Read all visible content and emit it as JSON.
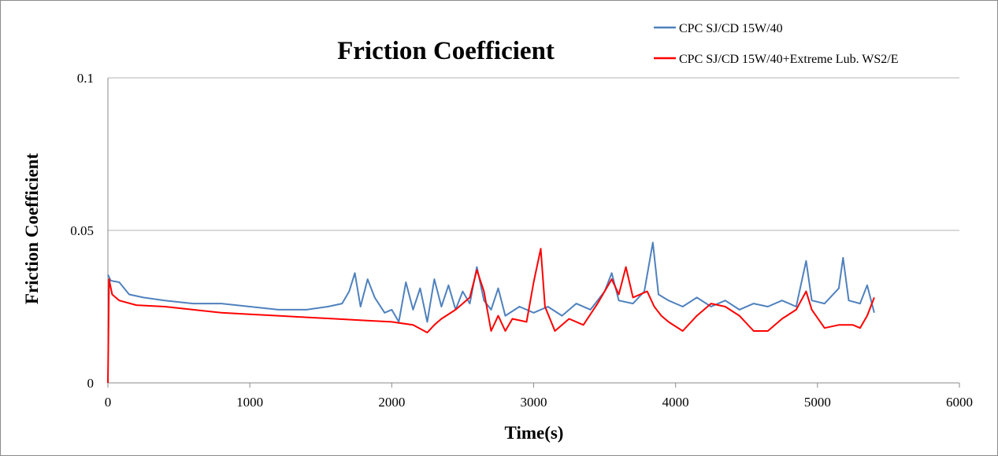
{
  "chart_data": {
    "type": "line",
    "title": "Friction Coefficient",
    "xlabel": "Time(s)",
    "ylabel": "Friction Coefficient",
    "xlim": [
      0,
      6000
    ],
    "ylim": [
      0,
      0.1
    ],
    "x_ticks": [
      "0",
      "1000",
      "2000",
      "3000",
      "4000",
      "5000",
      "6000"
    ],
    "y_ticks": [
      "0",
      "0.05",
      "0.1"
    ],
    "grid": "horizontal",
    "legend_position": "top-right",
    "series": [
      {
        "name": "CPC SJ/CD 15W/40",
        "color": "#4f81bd",
        "points": [
          [
            0,
            0.0355
          ],
          [
            20,
            0.0335
          ],
          [
            80,
            0.033
          ],
          [
            150,
            0.029
          ],
          [
            250,
            0.028
          ],
          [
            400,
            0.027
          ],
          [
            600,
            0.026
          ],
          [
            800,
            0.026
          ],
          [
            1000,
            0.025
          ],
          [
            1200,
            0.024
          ],
          [
            1400,
            0.024
          ],
          [
            1550,
            0.025
          ],
          [
            1650,
            0.026
          ],
          [
            1700,
            0.03
          ],
          [
            1740,
            0.036
          ],
          [
            1780,
            0.025
          ],
          [
            1830,
            0.034
          ],
          [
            1880,
            0.028
          ],
          [
            1950,
            0.023
          ],
          [
            2000,
            0.024
          ],
          [
            2050,
            0.02
          ],
          [
            2100,
            0.033
          ],
          [
            2150,
            0.024
          ],
          [
            2200,
            0.031
          ],
          [
            2250,
            0.02
          ],
          [
            2300,
            0.034
          ],
          [
            2350,
            0.025
          ],
          [
            2400,
            0.032
          ],
          [
            2450,
            0.024
          ],
          [
            2500,
            0.03
          ],
          [
            2550,
            0.026
          ],
          [
            2600,
            0.038
          ],
          [
            2650,
            0.027
          ],
          [
            2700,
            0.024
          ],
          [
            2750,
            0.031
          ],
          [
            2800,
            0.022
          ],
          [
            2900,
            0.025
          ],
          [
            3000,
            0.023
          ],
          [
            3100,
            0.025
          ],
          [
            3200,
            0.022
          ],
          [
            3300,
            0.026
          ],
          [
            3400,
            0.024
          ],
          [
            3500,
            0.03
          ],
          [
            3550,
            0.036
          ],
          [
            3600,
            0.027
          ],
          [
            3700,
            0.026
          ],
          [
            3780,
            0.03
          ],
          [
            3840,
            0.046
          ],
          [
            3880,
            0.029
          ],
          [
            3950,
            0.027
          ],
          [
            4050,
            0.025
          ],
          [
            4150,
            0.028
          ],
          [
            4250,
            0.025
          ],
          [
            4350,
            0.027
          ],
          [
            4450,
            0.024
          ],
          [
            4550,
            0.026
          ],
          [
            4650,
            0.025
          ],
          [
            4750,
            0.027
          ],
          [
            4850,
            0.025
          ],
          [
            4920,
            0.04
          ],
          [
            4960,
            0.027
          ],
          [
            5050,
            0.026
          ],
          [
            5150,
            0.031
          ],
          [
            5180,
            0.041
          ],
          [
            5220,
            0.027
          ],
          [
            5300,
            0.026
          ],
          [
            5350,
            0.032
          ],
          [
            5400,
            0.023
          ]
        ]
      },
      {
        "name": "CPC SJ/CD 15W/40+Extreme Lub. WS2/E",
        "color": "#ff0000",
        "points": [
          [
            0,
            0.0
          ],
          [
            8,
            0.034
          ],
          [
            30,
            0.029
          ],
          [
            80,
            0.027
          ],
          [
            200,
            0.0255
          ],
          [
            400,
            0.025
          ],
          [
            600,
            0.024
          ],
          [
            800,
            0.023
          ],
          [
            1000,
            0.0225
          ],
          [
            1200,
            0.022
          ],
          [
            1400,
            0.0215
          ],
          [
            1600,
            0.021
          ],
          [
            1800,
            0.0205
          ],
          [
            2000,
            0.02
          ],
          [
            2150,
            0.019
          ],
          [
            2250,
            0.0165
          ],
          [
            2300,
            0.019
          ],
          [
            2350,
            0.021
          ],
          [
            2450,
            0.024
          ],
          [
            2550,
            0.028
          ],
          [
            2600,
            0.037
          ],
          [
            2650,
            0.03
          ],
          [
            2700,
            0.017
          ],
          [
            2750,
            0.022
          ],
          [
            2800,
            0.017
          ],
          [
            2850,
            0.021
          ],
          [
            2950,
            0.02
          ],
          [
            3000,
            0.033
          ],
          [
            3050,
            0.044
          ],
          [
            3080,
            0.025
          ],
          [
            3150,
            0.017
          ],
          [
            3250,
            0.021
          ],
          [
            3350,
            0.019
          ],
          [
            3450,
            0.026
          ],
          [
            3550,
            0.034
          ],
          [
            3600,
            0.029
          ],
          [
            3650,
            0.038
          ],
          [
            3700,
            0.028
          ],
          [
            3800,
            0.03
          ],
          [
            3850,
            0.025
          ],
          [
            3900,
            0.022
          ],
          [
            3950,
            0.02
          ],
          [
            4050,
            0.017
          ],
          [
            4150,
            0.022
          ],
          [
            4250,
            0.026
          ],
          [
            4350,
            0.025
          ],
          [
            4450,
            0.022
          ],
          [
            4550,
            0.017
          ],
          [
            4650,
            0.017
          ],
          [
            4750,
            0.021
          ],
          [
            4850,
            0.024
          ],
          [
            4920,
            0.03
          ],
          [
            4960,
            0.024
          ],
          [
            5050,
            0.018
          ],
          [
            5150,
            0.019
          ],
          [
            5250,
            0.019
          ],
          [
            5300,
            0.018
          ],
          [
            5350,
            0.022
          ],
          [
            5400,
            0.028
          ]
        ]
      }
    ]
  }
}
